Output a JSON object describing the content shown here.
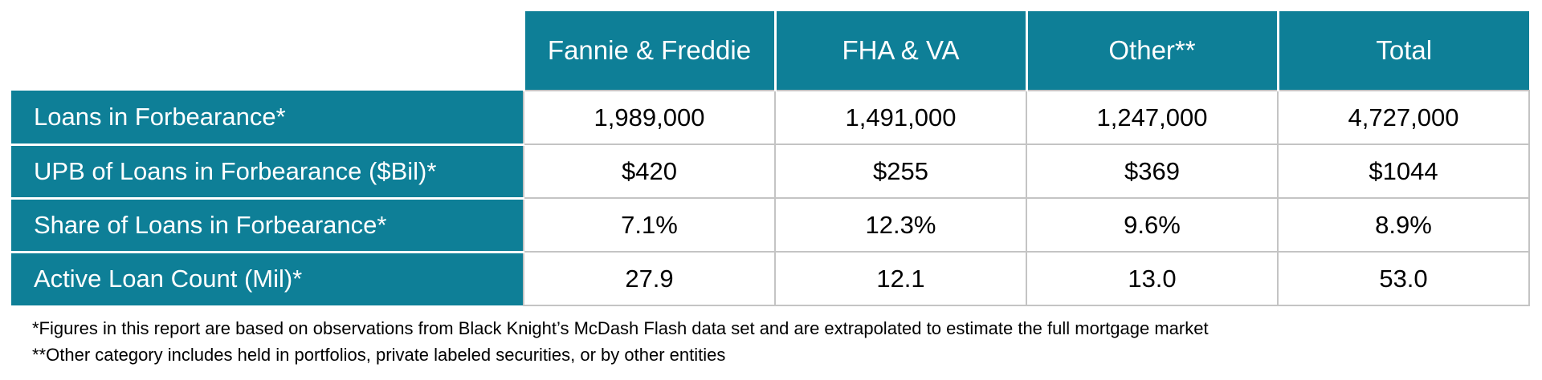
{
  "chart_data": {
    "type": "table",
    "columns": [
      "Fannie & Freddie",
      "FHA & VA",
      "Other**",
      "Total"
    ],
    "rows": [
      {
        "label": "Loans in Forbearance*",
        "values": [
          "1,989,000",
          "1,491,000",
          "1,247,000",
          "4,727,000"
        ]
      },
      {
        "label": "UPB of Loans in Forbearance ($Bil)*",
        "values": [
          "$420",
          "$255",
          "$369",
          "$1044"
        ]
      },
      {
        "label": "Share of Loans in Forbearance*",
        "values": [
          "7.1%",
          "12.3%",
          "9.6%",
          "8.9%"
        ]
      },
      {
        "label": "Active Loan Count  (Mil)*",
        "values": [
          "27.9",
          "12.1",
          "13.0",
          "53.0"
        ]
      }
    ]
  },
  "notes": [
    "*Figures in this report are based on observations from Black Knight’s McDash Flash data set and are extrapolated to estimate the full mortgage market",
    "**Other category includes held in portfolios, private labeled securities, or by other entities"
  ],
  "colors": {
    "header_bg": "#0e7f97",
    "header_text": "#ffffff",
    "grid": "#c4c4c4"
  }
}
